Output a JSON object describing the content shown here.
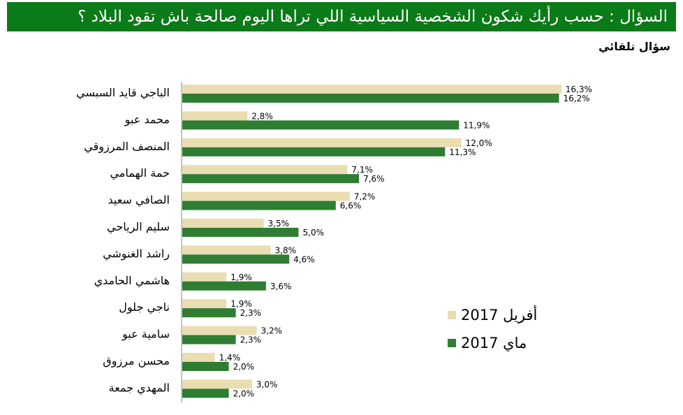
{
  "header": {
    "title": "السؤال : حسب رأيك شكون الشخصية السياسية اللي تراها اليوم صالحة باش تقود البلاد ؟",
    "subtitle": "سؤال تلقائي"
  },
  "colors": {
    "header_bg": "#0b7a18",
    "april": "#e9ddb1",
    "may": "#2e7d32"
  },
  "chart_data": {
    "type": "bar",
    "orientation": "horizontal",
    "categories": [
      "الباجي قايد السبسي",
      "محمد عبو",
      "المنصف المرزوقي",
      "حمة الهمامي",
      "الصافي سعيد",
      "سليم الرياحي",
      "راشد الغنوشي",
      "هاشمي الحامدي",
      "ناجي جلول",
      "سامية عبو",
      "محسن مرزوق",
      "المهدي جمعة"
    ],
    "series": [
      {
        "name": "أفريل 2017",
        "values": [
          16.3,
          2.8,
          12.0,
          7.1,
          7.2,
          3.5,
          3.8,
          1.9,
          1.9,
          3.2,
          1.4,
          3.0
        ],
        "labels": [
          "16,3%",
          "2,8%",
          "12,0%",
          "7,1%",
          "7,2%",
          "3,5%",
          "3,8%",
          "1,9%",
          "1,9%",
          "3,2%",
          "1,4%",
          "3,0%"
        ]
      },
      {
        "name": "ماي 2017",
        "values": [
          16.2,
          11.9,
          11.3,
          7.6,
          6.6,
          5.0,
          4.6,
          3.6,
          2.3,
          2.3,
          2.0,
          2.0
        ],
        "labels": [
          "16,2%",
          "11,9%",
          "11,3%",
          "7,6%",
          "6,6%",
          "5,0%",
          "4,6%",
          "3,6%",
          "2,3%",
          "2,3%",
          "2,0%",
          "2,0%"
        ]
      }
    ],
    "legend_position": "bottom-right",
    "grid": false
  }
}
